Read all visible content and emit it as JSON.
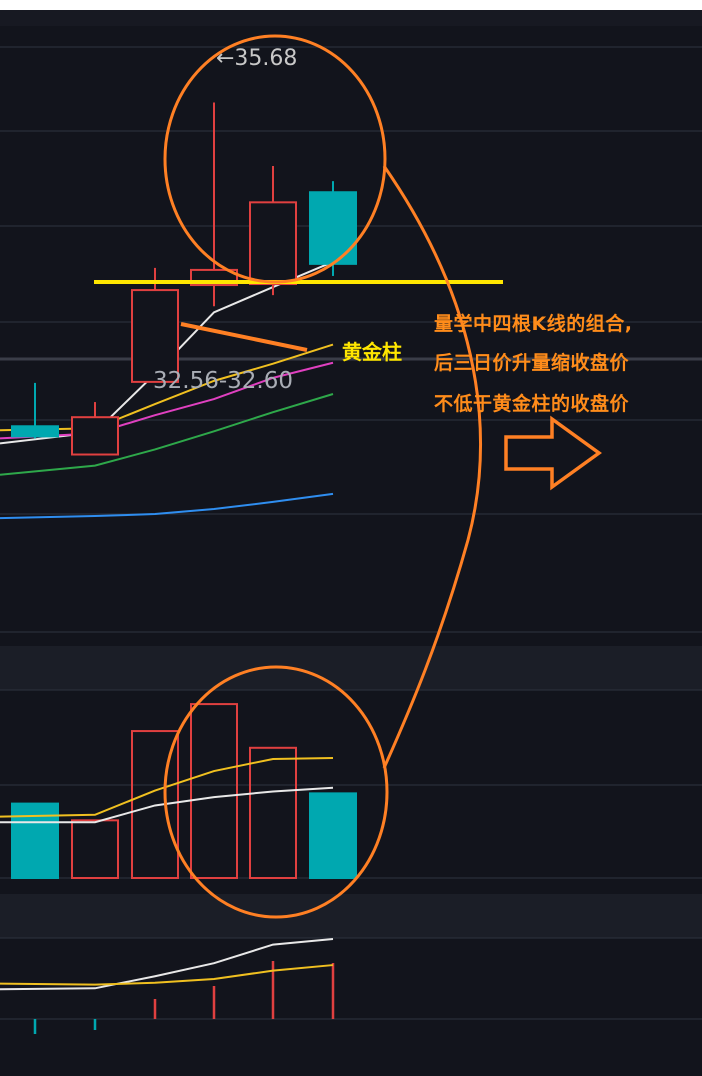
{
  "chart_data": [
    {
      "type": "candlestick",
      "panel": "price",
      "candles": [
        {
          "open": 32.47,
          "close": 32.37,
          "high": 32.9,
          "low": 32.35,
          "dir": "down"
        },
        {
          "open": 32.19,
          "close": 32.56,
          "high": 32.71,
          "low": 32.19,
          "dir": "up"
        },
        {
          "open": 32.91,
          "close": 33.82,
          "high": 34.04,
          "low": 32.91,
          "dir": "up"
        },
        {
          "open": 33.87,
          "close": 34.02,
          "high": 35.68,
          "low": 33.66,
          "dir": "up"
        },
        {
          "open": 33.88,
          "close": 34.69,
          "high": 35.05,
          "low": 33.77,
          "dir": "up"
        },
        {
          "open": 34.79,
          "close": 34.08,
          "high": 34.9,
          "low": 33.96,
          "dir": "down"
        }
      ],
      "moving_averages": [
        {
          "color": "#e8e8e8",
          "values": [
            32.3,
            32.41,
            32.99,
            33.6,
            33.85,
            34.1
          ]
        },
        {
          "color": "#f0c020",
          "values": [
            32.43,
            32.45,
            32.69,
            32.92,
            33.09,
            33.28
          ]
        },
        {
          "color": "#e040c0",
          "values": [
            32.35,
            32.4,
            32.58,
            32.74,
            32.95,
            33.1
          ]
        },
        {
          "color": "#2ea84a",
          "values": [
            31.99,
            32.08,
            32.24,
            32.42,
            32.61,
            32.79
          ]
        },
        {
          "color": "#2f8ef0",
          "values": [
            31.56,
            31.58,
            31.6,
            31.65,
            31.72,
            31.8
          ]
        }
      ],
      "annotations": {
        "high_label": "35.68",
        "range_label": "32.56-32.60",
        "golden_bar_label": "黄金柱",
        "support_level": 33.9
      },
      "ylim": [
        30.5,
        36.2
      ]
    },
    {
      "type": "bar",
      "panel": "volume",
      "values": [
        80,
        62,
        158,
        187,
        140,
        91
      ],
      "dirs": [
        "down",
        "up",
        "up",
        "up",
        "up",
        "down"
      ],
      "ma_lines": [
        {
          "color": "#f0c020",
          "values": [
            66,
            68,
            94,
            115,
            128,
            129
          ]
        },
        {
          "color": "#e8e8e8",
          "values": [
            60,
            60,
            78,
            87,
            93,
            97
          ]
        }
      ],
      "ylim": [
        0,
        200
      ]
    },
    {
      "type": "bar",
      "panel": "indicator",
      "values": [
        -1.5,
        -1.1,
        2.0,
        3.3,
        5.8,
        5.6
      ],
      "dirs": [
        "down",
        "down",
        "up",
        "up",
        "up",
        "up"
      ],
      "lines": [
        {
          "color": "#e8e8e8",
          "values": [
            3.2,
            3.3,
            4.6,
            6.0,
            8.0,
            8.6
          ]
        },
        {
          "color": "#f0c020",
          "values": [
            3.8,
            3.7,
            3.9,
            4.3,
            5.2,
            5.8
          ]
        }
      ],
      "ylim": [
        -2,
        10
      ]
    }
  ],
  "note": {
    "lines": [
      "量学中四根K线的组合,",
      "后三日价升量缩收盘价",
      "不低于黄金柱的收盘价"
    ]
  }
}
